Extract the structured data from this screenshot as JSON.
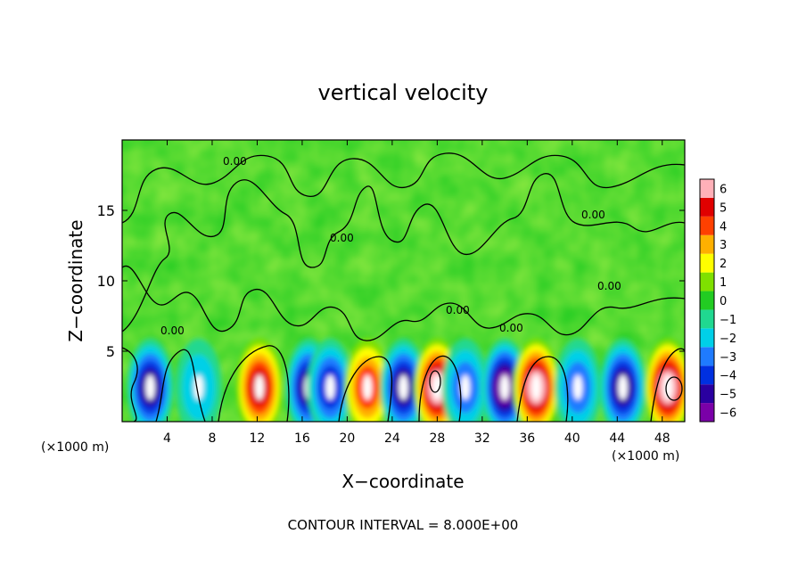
{
  "chart_data": {
    "type": "heatmap",
    "title": "vertical velocity",
    "xlabel": "X−coordinate",
    "ylabel": "Z−coordinate",
    "x_units_left": "(×1000 m)",
    "x_units_right": "(×1000 m)",
    "footer": "CONTOUR INTERVAL = 8.000E+00",
    "contour_label": "0.00",
    "xlim": [
      0,
      50
    ],
    "ylim": [
      0,
      20
    ],
    "x_ticks": [
      4,
      8,
      12,
      16,
      20,
      24,
      28,
      32,
      36,
      40,
      44,
      48
    ],
    "x_tick_labels": [
      "4",
      "8",
      "12",
      "16",
      "20",
      "24",
      "28",
      "32",
      "36",
      "40",
      "44",
      "48"
    ],
    "y_ticks": [
      5,
      10,
      15
    ],
    "y_tick_labels": [
      "5",
      "10",
      "15"
    ],
    "colorbar": {
      "levels": [
        -6,
        -5,
        -4,
        -3,
        -2,
        -1,
        0,
        1,
        2,
        3,
        4,
        5,
        6
      ],
      "labels": [
        "−6",
        "−5",
        "−4",
        "−3",
        "−2",
        "−1",
        "0",
        "1",
        "2",
        "3",
        "4",
        "5",
        "6"
      ],
      "colors": [
        "#7a00a8",
        "#2a00a0",
        "#0030e0",
        "#1f7bff",
        "#00d0e8",
        "#20d890",
        "#22cc22",
        "#7fe000",
        "#ffff00",
        "#ffb000",
        "#ff4000",
        "#e00000",
        "#ffb0b8"
      ]
    },
    "cells": [
      {
        "x": 2.5,
        "value": 5,
        "sign": -1
      },
      {
        "x": 6.8,
        "value": 2,
        "sign": -1
      },
      {
        "x": 12.2,
        "value": 5,
        "sign": 1
      },
      {
        "x": 16.6,
        "value": 5,
        "sign": -1
      },
      {
        "x": 18.5,
        "value": 4,
        "sign": -1
      },
      {
        "x": 21.8,
        "value": 4,
        "sign": 1
      },
      {
        "x": 25.0,
        "value": 5,
        "sign": -1
      },
      {
        "x": 28.0,
        "value": 6,
        "sign": 1
      },
      {
        "x": 30.5,
        "value": 3,
        "sign": -1
      },
      {
        "x": 34.0,
        "value": 6,
        "sign": -1
      },
      {
        "x": 36.8,
        "value": 6,
        "sign": 1
      },
      {
        "x": 40.5,
        "value": 3,
        "sign": -1
      },
      {
        "x": 44.5,
        "value": 5,
        "sign": -1
      },
      {
        "x": 48.5,
        "value": 6,
        "sign": 1
      }
    ],
    "grid": false,
    "legend": "right"
  }
}
